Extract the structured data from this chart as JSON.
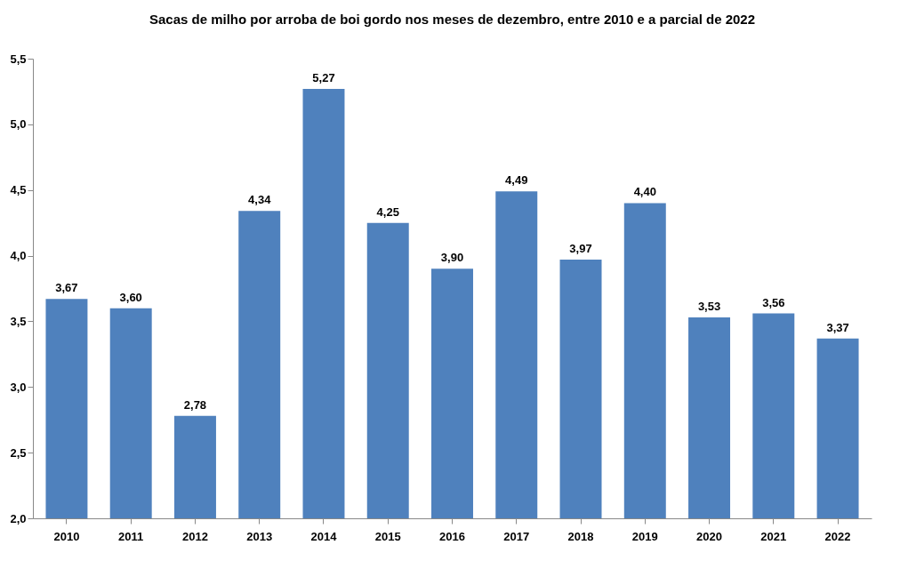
{
  "chart_data": {
    "type": "bar",
    "title": "Sacas de milho por arroba de boi gordo nos meses de dezembro, entre 2010 e a parcial de 2022",
    "categories": [
      "2010",
      "2011",
      "2012",
      "2013",
      "2014",
      "2015",
      "2016",
      "2017",
      "2018",
      "2019",
      "2020",
      "2021",
      "2022"
    ],
    "values": [
      3.67,
      3.6,
      2.78,
      4.34,
      5.27,
      4.25,
      3.9,
      4.49,
      3.97,
      4.4,
      3.53,
      3.56,
      3.37
    ],
    "value_labels": [
      "3,67",
      "3,60",
      "2,78",
      "4,34",
      "5,27",
      "4,25",
      "3,90",
      "4,49",
      "3,97",
      "4,40",
      "3,53",
      "3,56",
      "3,37"
    ],
    "color": "#4f81bd",
    "ylim": [
      2.0,
      5.5
    ],
    "yticks": [
      {
        "value": 2.0,
        "label": "2,0"
      },
      {
        "value": 2.5,
        "label": "2,5"
      },
      {
        "value": 3.0,
        "label": "3,0"
      },
      {
        "value": 3.5,
        "label": "3,5"
      },
      {
        "value": 4.0,
        "label": "4,0"
      },
      {
        "value": 4.5,
        "label": "4,5"
      },
      {
        "value": 5.0,
        "label": "5,0"
      },
      {
        "value": 5.5,
        "label": "5,5"
      }
    ],
    "grid": false
  }
}
